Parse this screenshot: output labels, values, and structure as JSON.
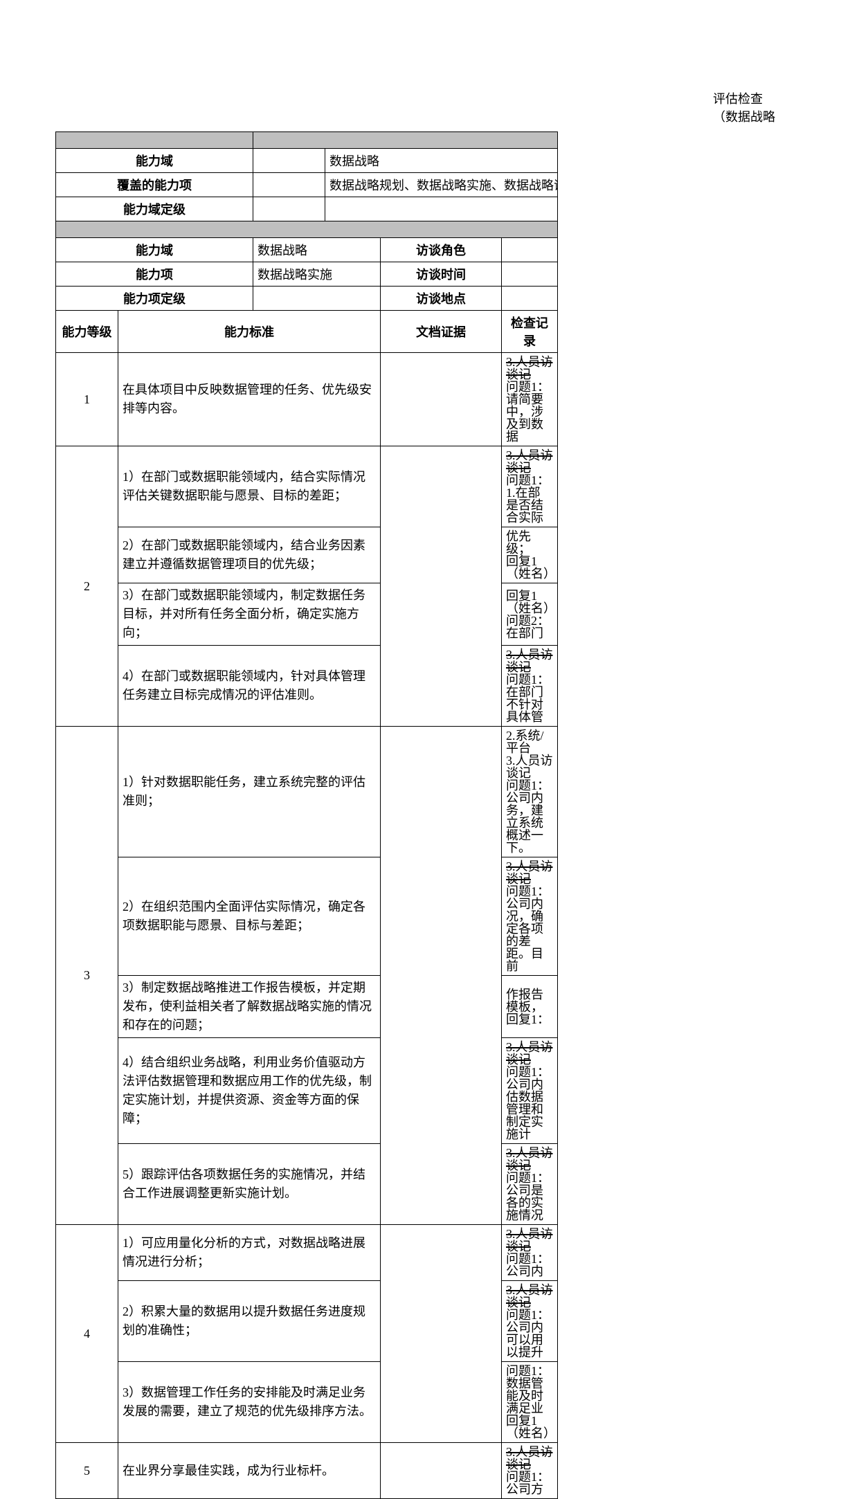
{
  "header": {
    "line1": "评估检查",
    "line2": "（数据战略"
  },
  "meta1": {
    "domain_label": "能力域",
    "domain_value": "数据战略",
    "covered_label": "覆盖的能力项",
    "covered_value": "数据战略规划、数据战略实施、数据战略评",
    "grade_label": "能力域定级"
  },
  "meta2": {
    "domain_label": "能力域",
    "domain_value": "数据战略",
    "role_label": "访谈角色",
    "item_label": "能力项",
    "item_value": "数据战略实施",
    "time_label": "访谈时间",
    "itemgrade_label": "能力项定级",
    "place_label": "访谈地点"
  },
  "cols": {
    "level": "能力等级",
    "standard": "能力标准",
    "doc": "文档证据",
    "record": "检查记录"
  },
  "rows": [
    {
      "level": "1",
      "stds": [
        "在具体项目中反映数据管理的任务、优先级安排等内容。"
      ],
      "recs": [
        "3.人员访谈记\n问题1：请简要\n中，涉及到数据"
      ]
    },
    {
      "level": "2",
      "stds": [
        "1）在部门或数据职能领域内，结合实际情况评估关键数据职能与愿景、目标的差距；",
        "2）在部门或数据职能领域内，结合业务因素建立并遵循数据管理项目的优先级；",
        "3）在部门或数据职能领域内，制定数据任务目标，并对所有任务全面分析，确定实施方向；",
        "4）在部门或数据职能领域内，针对具体管理任务建立目标完成情况的评估准则。"
      ],
      "recs": [
        "3.人员访谈记\n问题1：1.在部\n是否结合实际",
        "优先级；\n回复1（姓名）",
        "回复1（姓名）\n问题2：在部门",
        "3.人员访谈记\n问题1：在部门\n不针对具体管"
      ]
    },
    {
      "level": "3",
      "stds": [
        "1）针对数据职能任务，建立系统完整的评估准则；",
        "2）在组织范围内全面评估实际情况，确定各项数据职能与愿景、目标与差距；",
        "3）制定数据战略推进工作报告模板，并定期发布，使利益相关者了解数据战略实施的情况和存在的问题；",
        "4）结合组织业务战略，利用业务价值驱动方法评估数据管理和数据应用工作的优先级，制定实施计划，并提供资源、资金等方面的保障；",
        "5）跟踪评估各项数据任务的实施情况，并结合工作进展调整更新实施计划。"
      ],
      "recs": [
        "2.系统/平台\n3.人员访谈记\n问题1：公司内\n务，建立系统\n概述一下。",
        "3.人员访谈记\n问题1：公司内\n况，确定各项\n的差距。目前",
        "作报告模板，\n回复1：",
        "3.人员访谈记\n问题1：公司内\n估数据管理和\n制定实施计",
        "3.人员访谈记\n问题1：公司是\n各的实施情况"
      ]
    },
    {
      "level": "4",
      "stds": [
        "1）可应用量化分析的方式，对数据战略进展情况进行分析；",
        "2）积累大量的数据用以提升数据任务进度规划的准确性；",
        "3）数据管理工作任务的安排能及时满足业务发展的需要，建立了规范的优先级排序方法。"
      ],
      "recs": [
        "3.人员访谈记\n问题1：公司内",
        "3.人员访谈记\n问题1：公司内\n可以用以提升",
        "问题1：数据管\n能及时满足业\n回复1（姓名）"
      ]
    },
    {
      "level": "5",
      "stds": [
        "在业界分享最佳实践，成为行业标杆。"
      ],
      "recs": [
        "3.人员访谈记\n问题1：公司方"
      ]
    }
  ]
}
